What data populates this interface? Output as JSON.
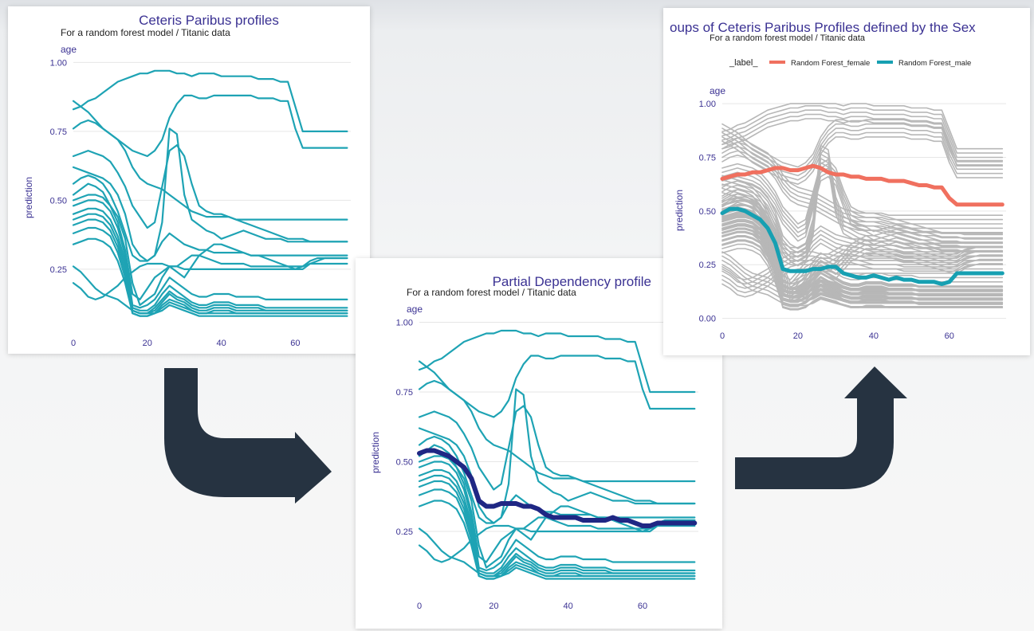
{
  "colors": {
    "profile": "#1ea3b4",
    "pdp": "#1f2784",
    "grey": "#b7b7b7",
    "female": "#f0705f",
    "male": "#17a0b2",
    "title": "#3b3293",
    "axis_text": "#3b3293",
    "grid": "#e6e6e6",
    "arrow": "#263341"
  },
  "chart_data": [
    {
      "type": "line",
      "title": "Ceteris Paribus profiles",
      "subtitle": "For a random forest model / Titanic data",
      "facet_label": "age",
      "xlabel": "",
      "ylabel": "prediction",
      "xlim": [
        0,
        75
      ],
      "ylim": [
        0.03,
        1.03
      ],
      "x_ticks": [
        "0",
        "20",
        "40",
        "60"
      ],
      "y_ticks": [
        "0.25",
        "0.50",
        "0.75",
        "1.00"
      ],
      "x": [
        0,
        2,
        4,
        6,
        8,
        10,
        12,
        14,
        16,
        18,
        20,
        22,
        24,
        26,
        28,
        30,
        32,
        34,
        36,
        38,
        40,
        42,
        44,
        46,
        48,
        50,
        52,
        54,
        56,
        58,
        60,
        62,
        64,
        66,
        68,
        70,
        72,
        74
      ],
      "series": [
        {
          "values": [
            0.83,
            0.84,
            0.86,
            0.87,
            0.89,
            0.91,
            0.93,
            0.94,
            0.95,
            0.96,
            0.96,
            0.97,
            0.97,
            0.97,
            0.96,
            0.96,
            0.95,
            0.96,
            0.96,
            0.96,
            0.95,
            0.95,
            0.95,
            0.95,
            0.95,
            0.94,
            0.94,
            0.94,
            0.93,
            0.93,
            0.84,
            0.75,
            0.75,
            0.75,
            0.75,
            0.75,
            0.75,
            0.75
          ]
        },
        {
          "values": [
            0.86,
            0.84,
            0.82,
            0.79,
            0.76,
            0.74,
            0.72,
            0.7,
            0.68,
            0.67,
            0.66,
            0.68,
            0.72,
            0.8,
            0.85,
            0.88,
            0.88,
            0.87,
            0.87,
            0.88,
            0.88,
            0.88,
            0.88,
            0.88,
            0.88,
            0.87,
            0.87,
            0.87,
            0.86,
            0.86,
            0.76,
            0.69,
            0.69,
            0.69,
            0.69,
            0.69,
            0.69,
            0.69
          ]
        },
        {
          "values": [
            0.76,
            0.78,
            0.79,
            0.78,
            0.76,
            0.74,
            0.72,
            0.68,
            0.62,
            0.58,
            0.56,
            0.55,
            0.54,
            0.52,
            0.5,
            0.48,
            0.46,
            0.45,
            0.44,
            0.44,
            0.44,
            0.44,
            0.43,
            0.43,
            0.43,
            0.43,
            0.43,
            0.43,
            0.43,
            0.43,
            0.43,
            0.43,
            0.43,
            0.43,
            0.43,
            0.43,
            0.43,
            0.43
          ]
        },
        {
          "values": [
            0.66,
            0.67,
            0.68,
            0.67,
            0.66,
            0.64,
            0.6,
            0.55,
            0.48,
            0.44,
            0.4,
            0.42,
            0.55,
            0.68,
            0.7,
            0.66,
            0.56,
            0.48,
            0.46,
            0.45,
            0.45,
            0.44,
            0.43,
            0.42,
            0.41,
            0.4,
            0.39,
            0.38,
            0.37,
            0.36,
            0.36,
            0.36,
            0.35,
            0.35,
            0.35,
            0.35,
            0.35,
            0.35
          ]
        },
        {
          "values": [
            0.62,
            0.61,
            0.6,
            0.59,
            0.58,
            0.56,
            0.52,
            0.45,
            0.34,
            0.3,
            0.28,
            0.3,
            0.42,
            0.76,
            0.74,
            0.52,
            0.43,
            0.41,
            0.39,
            0.38,
            0.36,
            0.37,
            0.38,
            0.39,
            0.38,
            0.37,
            0.36,
            0.36,
            0.36,
            0.35,
            0.35,
            0.35,
            0.35,
            0.35,
            0.35,
            0.35,
            0.35,
            0.35
          ]
        },
        {
          "values": [
            0.56,
            0.58,
            0.59,
            0.58,
            0.56,
            0.52,
            0.46,
            0.38,
            0.3,
            0.28,
            0.28,
            0.3,
            0.35,
            0.38,
            0.36,
            0.34,
            0.33,
            0.32,
            0.32,
            0.31,
            0.31,
            0.31,
            0.31,
            0.31,
            0.3,
            0.3,
            0.3,
            0.3,
            0.3,
            0.3,
            0.3,
            0.3,
            0.3,
            0.3,
            0.3,
            0.3,
            0.3,
            0.3
          ]
        },
        {
          "values": [
            0.52,
            0.54,
            0.56,
            0.55,
            0.53,
            0.48,
            0.42,
            0.32,
            0.16,
            0.14,
            0.18,
            0.22,
            0.24,
            0.26,
            0.26,
            0.28,
            0.3,
            0.3,
            0.29,
            0.28,
            0.27,
            0.27,
            0.27,
            0.27,
            0.26,
            0.26,
            0.26,
            0.26,
            0.26,
            0.26,
            0.26,
            0.26,
            0.28,
            0.29,
            0.29,
            0.29,
            0.29,
            0.29
          ]
        },
        {
          "values": [
            0.5,
            0.51,
            0.52,
            0.52,
            0.51,
            0.48,
            0.44,
            0.36,
            0.2,
            0.12,
            0.14,
            0.16,
            0.22,
            0.26,
            0.24,
            0.22,
            0.26,
            0.3,
            0.32,
            0.34,
            0.34,
            0.33,
            0.32,
            0.31,
            0.3,
            0.3,
            0.29,
            0.28,
            0.27,
            0.26,
            0.25,
            0.26,
            0.27,
            0.28,
            0.29,
            0.29,
            0.29,
            0.29
          ]
        },
        {
          "values": [
            0.48,
            0.49,
            0.5,
            0.5,
            0.49,
            0.46,
            0.4,
            0.3,
            0.12,
            0.11,
            0.12,
            0.14,
            0.18,
            0.22,
            0.2,
            0.18,
            0.16,
            0.15,
            0.15,
            0.16,
            0.16,
            0.16,
            0.15,
            0.15,
            0.15,
            0.15,
            0.14,
            0.14,
            0.14,
            0.14,
            0.14,
            0.14,
            0.14,
            0.14,
            0.14,
            0.14,
            0.14,
            0.14
          ]
        },
        {
          "values": [
            0.45,
            0.46,
            0.47,
            0.47,
            0.46,
            0.43,
            0.37,
            0.28,
            0.11,
            0.1,
            0.1,
            0.12,
            0.16,
            0.19,
            0.17,
            0.15,
            0.13,
            0.12,
            0.12,
            0.13,
            0.13,
            0.13,
            0.12,
            0.12,
            0.12,
            0.12,
            0.11,
            0.11,
            0.11,
            0.11,
            0.11,
            0.11,
            0.11,
            0.11,
            0.11,
            0.11,
            0.11,
            0.11
          ]
        },
        {
          "values": [
            0.43,
            0.44,
            0.45,
            0.45,
            0.44,
            0.41,
            0.35,
            0.26,
            0.1,
            0.09,
            0.09,
            0.11,
            0.14,
            0.17,
            0.15,
            0.14,
            0.12,
            0.11,
            0.11,
            0.12,
            0.12,
            0.12,
            0.11,
            0.11,
            0.11,
            0.11,
            0.1,
            0.1,
            0.1,
            0.1,
            0.1,
            0.1,
            0.1,
            0.1,
            0.1,
            0.1,
            0.1,
            0.1
          ]
        },
        {
          "values": [
            0.41,
            0.42,
            0.43,
            0.43,
            0.42,
            0.39,
            0.33,
            0.24,
            0.1,
            0.09,
            0.09,
            0.1,
            0.13,
            0.16,
            0.14,
            0.13,
            0.11,
            0.1,
            0.1,
            0.11,
            0.11,
            0.11,
            0.1,
            0.1,
            0.1,
            0.1,
            0.1,
            0.1,
            0.1,
            0.1,
            0.1,
            0.1,
            0.1,
            0.1,
            0.1,
            0.1,
            0.1,
            0.1
          ]
        },
        {
          "values": [
            0.38,
            0.39,
            0.4,
            0.4,
            0.39,
            0.37,
            0.31,
            0.22,
            0.09,
            0.08,
            0.08,
            0.09,
            0.12,
            0.14,
            0.13,
            0.12,
            0.1,
            0.09,
            0.09,
            0.1,
            0.1,
            0.1,
            0.09,
            0.09,
            0.09,
            0.09,
            0.09,
            0.09,
            0.09,
            0.09,
            0.09,
            0.09,
            0.09,
            0.09,
            0.09,
            0.09,
            0.09,
            0.09
          ]
        },
        {
          "values": [
            0.34,
            0.35,
            0.36,
            0.36,
            0.35,
            0.33,
            0.28,
            0.2,
            0.09,
            0.08,
            0.08,
            0.09,
            0.11,
            0.13,
            0.12,
            0.11,
            0.1,
            0.09,
            0.09,
            0.09,
            0.09,
            0.09,
            0.09,
            0.09,
            0.09,
            0.09,
            0.09,
            0.09,
            0.09,
            0.09,
            0.09,
            0.09,
            0.09,
            0.09,
            0.09,
            0.09,
            0.09,
            0.09
          ]
        },
        {
          "values": [
            0.26,
            0.24,
            0.21,
            0.18,
            0.16,
            0.15,
            0.14,
            0.12,
            0.1,
            0.09,
            0.09,
            0.09,
            0.1,
            0.12,
            0.11,
            0.1,
            0.09,
            0.08,
            0.08,
            0.08,
            0.08,
            0.08,
            0.08,
            0.08,
            0.08,
            0.08,
            0.08,
            0.08,
            0.08,
            0.08,
            0.08,
            0.08,
            0.08,
            0.08,
            0.08,
            0.08,
            0.08,
            0.08
          ]
        },
        {
          "values": [
            0.2,
            0.18,
            0.15,
            0.14,
            0.15,
            0.17,
            0.19,
            0.22,
            0.24,
            0.26,
            0.27,
            0.27,
            0.27,
            0.26,
            0.26,
            0.25,
            0.25,
            0.25,
            0.25,
            0.25,
            0.25,
            0.25,
            0.25,
            0.25,
            0.25,
            0.25,
            0.25,
            0.25,
            0.25,
            0.25,
            0.25,
            0.25,
            0.27,
            0.27,
            0.27,
            0.27,
            0.27,
            0.27
          ]
        }
      ]
    },
    {
      "type": "line",
      "title": "Partial Dependency profile",
      "subtitle": "For a random forest model / Titanic data",
      "facet_label": "age",
      "xlabel": "",
      "ylabel": "prediction",
      "xlim": [
        0,
        75
      ],
      "ylim": [
        0.03,
        1.03
      ],
      "x_ticks": [
        "0",
        "20",
        "40",
        "60"
      ],
      "y_ticks": [
        "0.25",
        "0.50",
        "0.75",
        "1.00"
      ],
      "note": "same 16 Ceteris Paribus profiles as the first chart, plus one averaged profile",
      "pdp_series": {
        "values": [
          0.53,
          0.54,
          0.54,
          0.53,
          0.52,
          0.5,
          0.48,
          0.44,
          0.36,
          0.34,
          0.34,
          0.35,
          0.35,
          0.35,
          0.34,
          0.34,
          0.33,
          0.31,
          0.3,
          0.3,
          0.3,
          0.3,
          0.29,
          0.29,
          0.29,
          0.29,
          0.3,
          0.29,
          0.29,
          0.28,
          0.27,
          0.27,
          0.28,
          0.28,
          0.28,
          0.28,
          0.28,
          0.28
        ]
      }
    },
    {
      "type": "line",
      "title": "oups of Ceteris Paribus Profiles defined by the Sex",
      "subtitle": "For a random forest model / Titanic data",
      "facet_label": "age",
      "xlabel": "",
      "ylabel": "prediction",
      "xlim": [
        0,
        75
      ],
      "ylim": [
        -0.02,
        1.03
      ],
      "x_ticks": [
        "0",
        "20",
        "40",
        "60"
      ],
      "y_ticks": [
        "0.00",
        "0.25",
        "0.50",
        "0.75",
        "1.00"
      ],
      "legend": {
        "title": "_label_",
        "placement": "top",
        "items": [
          "Random Forest_female",
          "Random Forest_male"
        ]
      },
      "series": [
        {
          "name": "Random Forest_female",
          "values": [
            0.65,
            0.66,
            0.67,
            0.67,
            0.68,
            0.68,
            0.69,
            0.7,
            0.7,
            0.69,
            0.69,
            0.7,
            0.71,
            0.7,
            0.68,
            0.67,
            0.67,
            0.66,
            0.66,
            0.65,
            0.65,
            0.65,
            0.64,
            0.64,
            0.64,
            0.63,
            0.62,
            0.62,
            0.61,
            0.61,
            0.56,
            0.53,
            0.53,
            0.53,
            0.53,
            0.53,
            0.53,
            0.53
          ]
        },
        {
          "name": "Random Forest_male",
          "values": [
            0.49,
            0.51,
            0.51,
            0.5,
            0.48,
            0.46,
            0.42,
            0.35,
            0.23,
            0.22,
            0.22,
            0.22,
            0.23,
            0.23,
            0.24,
            0.24,
            0.21,
            0.2,
            0.19,
            0.19,
            0.2,
            0.19,
            0.18,
            0.19,
            0.18,
            0.18,
            0.17,
            0.17,
            0.17,
            0.16,
            0.17,
            0.21,
            0.21,
            0.21,
            0.21,
            0.21,
            0.21,
            0.21
          ]
        }
      ]
    }
  ]
}
